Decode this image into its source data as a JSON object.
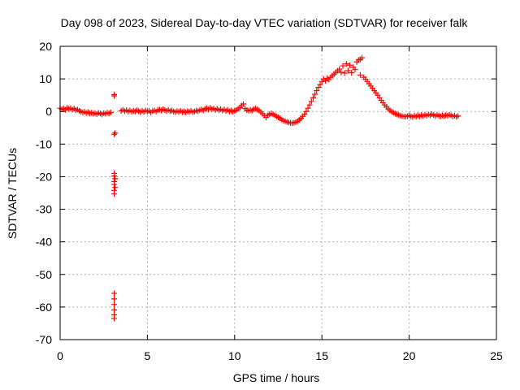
{
  "chart_data": {
    "type": "scatter",
    "title": "Day 098 of 2023, Sidereal Day-to-day VTEC variation (SDTVAR) for receiver falk",
    "xlabel": "GPS time / hours",
    "ylabel": "SDTVAR / TECUs",
    "xlim": [
      0,
      25
    ],
    "ylim": [
      -70,
      20
    ],
    "xticks": [
      0,
      5,
      10,
      15,
      20,
      25
    ],
    "yticks": [
      -70,
      -60,
      -50,
      -40,
      -30,
      -20,
      -10,
      0,
      10,
      20
    ],
    "xtick_labels": [
      "0",
      "5",
      "10",
      "15",
      "20",
      "25"
    ],
    "ytick_labels": [
      "-70",
      "-60",
      "-50",
      "-40",
      "-30",
      "-20",
      "-10",
      "0",
      "10",
      "20"
    ],
    "grid": true,
    "marker": "+",
    "color": "#ff0000",
    "series": [
      {
        "name": "SDTVAR",
        "points": [
          [
            0.0,
            1.0
          ],
          [
            0.1,
            0.7
          ],
          [
            0.2,
            0.9
          ],
          [
            0.3,
            0.5
          ],
          [
            0.4,
            1.1
          ],
          [
            0.5,
            0.8
          ],
          [
            0.6,
            1.0
          ],
          [
            0.7,
            0.6
          ],
          [
            0.8,
            0.9
          ],
          [
            0.9,
            0.4
          ],
          [
            1.0,
            0.6
          ],
          [
            1.1,
            0.2
          ],
          [
            1.2,
            -0.1
          ],
          [
            1.3,
            -0.3
          ],
          [
            1.4,
            -0.1
          ],
          [
            1.5,
            -0.5
          ],
          [
            1.6,
            -0.2
          ],
          [
            1.7,
            -0.6
          ],
          [
            1.8,
            -0.4
          ],
          [
            1.9,
            -0.7
          ],
          [
            2.0,
            -0.5
          ],
          [
            2.1,
            -0.8
          ],
          [
            2.2,
            -0.4
          ],
          [
            2.3,
            -0.6
          ],
          [
            2.4,
            -0.9
          ],
          [
            2.5,
            -0.5
          ],
          [
            2.6,
            -0.7
          ],
          [
            2.7,
            -0.4
          ],
          [
            2.8,
            -0.6
          ],
          [
            2.9,
            -0.3
          ],
          [
            3.1,
            5.2
          ],
          [
            3.1,
            4.8
          ],
          [
            3.1,
            -7.0
          ],
          [
            3.15,
            -6.6
          ],
          [
            3.1,
            -19.0
          ],
          [
            3.1,
            -19.8
          ],
          [
            3.15,
            -20.6
          ],
          [
            3.1,
            -21.5
          ],
          [
            3.1,
            -22.4
          ],
          [
            3.15,
            -23.3
          ],
          [
            3.1,
            -24.2
          ],
          [
            3.1,
            -25.3
          ],
          [
            3.1,
            -55.8
          ],
          [
            3.1,
            -57.5
          ],
          [
            3.1,
            -59.2
          ],
          [
            3.1,
            -60.9
          ],
          [
            3.1,
            -62.4
          ],
          [
            3.1,
            -63.5
          ],
          [
            3.5,
            0.2
          ],
          [
            3.6,
            0.5
          ],
          [
            3.7,
            0.1
          ],
          [
            3.8,
            0.4
          ],
          [
            3.9,
            0.0
          ],
          [
            4.0,
            0.3
          ],
          [
            4.1,
            -0.1
          ],
          [
            4.2,
            0.2
          ],
          [
            4.3,
            0.0
          ],
          [
            4.4,
            0.4
          ],
          [
            4.5,
            0.1
          ],
          [
            4.6,
            -0.2
          ],
          [
            4.7,
            0.2
          ],
          [
            4.8,
            -0.1
          ],
          [
            4.9,
            0.3
          ],
          [
            5.0,
            0.0
          ],
          [
            5.1,
            0.2
          ],
          [
            5.2,
            -0.3
          ],
          [
            5.3,
            0.1
          ],
          [
            5.4,
            0.3
          ],
          [
            5.5,
            0.0
          ],
          [
            5.6,
            0.4
          ],
          [
            5.7,
            0.6
          ],
          [
            5.8,
            0.3
          ],
          [
            5.9,
            0.7
          ],
          [
            6.0,
            0.4
          ],
          [
            6.1,
            0.2
          ],
          [
            6.2,
            0.5
          ],
          [
            6.3,
            0.1
          ],
          [
            6.4,
            0.3
          ],
          [
            6.5,
            0.0
          ],
          [
            6.6,
            -0.2
          ],
          [
            6.7,
            0.1
          ],
          [
            6.8,
            -0.1
          ],
          [
            6.9,
            0.2
          ],
          [
            7.0,
            -0.2
          ],
          [
            7.1,
            0.0
          ],
          [
            7.2,
            -0.3
          ],
          [
            7.3,
            0.1
          ],
          [
            7.4,
            -0.1
          ],
          [
            7.5,
            0.2
          ],
          [
            7.6,
            -0.2
          ],
          [
            7.7,
            0.0
          ],
          [
            7.8,
            0.3
          ],
          [
            7.9,
            0.1
          ],
          [
            8.0,
            0.4
          ],
          [
            8.1,
            0.6
          ],
          [
            8.2,
            0.3
          ],
          [
            8.3,
            0.8
          ],
          [
            8.4,
            1.0
          ],
          [
            8.5,
            0.6
          ],
          [
            8.6,
            1.1
          ],
          [
            8.7,
            0.7
          ],
          [
            8.8,
            0.9
          ],
          [
            8.9,
            0.5
          ],
          [
            9.0,
            0.8
          ],
          [
            9.1,
            0.4
          ],
          [
            9.2,
            0.7
          ],
          [
            9.3,
            0.3
          ],
          [
            9.4,
            0.6
          ],
          [
            9.5,
            0.2
          ],
          [
            9.6,
            0.5
          ],
          [
            9.7,
            0.0
          ],
          [
            9.8,
            0.3
          ],
          [
            9.9,
            -0.1
          ],
          [
            10.0,
            0.2
          ],
          [
            10.1,
            0.4
          ],
          [
            10.2,
            0.8
          ],
          [
            10.3,
            1.2
          ],
          [
            10.4,
            1.8
          ],
          [
            10.5,
            2.3
          ],
          [
            10.6,
            0.9
          ],
          [
            10.7,
            0.4
          ],
          [
            10.8,
            0.2
          ],
          [
            10.9,
            0.5
          ],
          [
            11.0,
            0.3
          ],
          [
            11.1,
            0.7
          ],
          [
            11.2,
            1.0
          ],
          [
            11.3,
            0.6
          ],
          [
            11.4,
            0.3
          ],
          [
            11.5,
            -0.2
          ],
          [
            11.6,
            -0.7
          ],
          [
            11.7,
            -1.3
          ],
          [
            11.8,
            -1.8
          ],
          [
            11.9,
            -1.2
          ],
          [
            12.0,
            -0.8
          ],
          [
            12.1,
            -0.6
          ],
          [
            12.2,
            -0.9
          ],
          [
            12.3,
            -1.2
          ],
          [
            12.4,
            -1.5
          ],
          [
            12.5,
            -1.8
          ],
          [
            12.6,
            -2.1
          ],
          [
            12.7,
            -2.5
          ],
          [
            12.8,
            -2.8
          ],
          [
            12.9,
            -3.0
          ],
          [
            13.0,
            -3.2
          ],
          [
            13.1,
            -3.4
          ],
          [
            13.2,
            -3.5
          ],
          [
            13.3,
            -3.6
          ],
          [
            13.4,
            -3.5
          ],
          [
            13.5,
            -3.3
          ],
          [
            13.6,
            -3.0
          ],
          [
            13.7,
            -2.6
          ],
          [
            13.8,
            -2.1
          ],
          [
            13.9,
            -1.5
          ],
          [
            14.0,
            -0.8
          ],
          [
            14.1,
            0.0
          ],
          [
            14.2,
            1.0
          ],
          [
            14.3,
            2.0
          ],
          [
            14.4,
            3.1
          ],
          [
            14.5,
            4.2
          ],
          [
            14.6,
            5.3
          ],
          [
            14.7,
            6.4
          ],
          [
            14.8,
            7.4
          ],
          [
            14.9,
            8.3
          ],
          [
            15.0,
            9.2
          ],
          [
            15.1,
            10.0
          ],
          [
            15.2,
            9.4
          ],
          [
            15.3,
            10.2
          ],
          [
            15.4,
            9.8
          ],
          [
            15.5,
            10.5
          ],
          [
            15.6,
            11.0
          ],
          [
            15.7,
            11.5
          ],
          [
            15.8,
            12.0
          ],
          [
            15.9,
            12.5
          ],
          [
            16.0,
            13.0
          ],
          [
            16.1,
            12.0
          ],
          [
            16.2,
            14.0
          ],
          [
            16.3,
            11.8
          ],
          [
            16.4,
            14.6
          ],
          [
            16.5,
            12.5
          ],
          [
            16.6,
            14.2
          ],
          [
            16.7,
            11.9
          ],
          [
            16.8,
            13.6
          ],
          [
            16.9,
            12.9
          ],
          [
            17.0,
            15.2
          ],
          [
            17.1,
            15.8
          ],
          [
            17.2,
            16.0
          ],
          [
            17.3,
            16.5
          ],
          [
            17.2,
            11.2
          ],
          [
            17.4,
            10.5
          ],
          [
            17.5,
            9.9
          ],
          [
            17.6,
            9.2
          ],
          [
            17.7,
            8.5
          ],
          [
            17.8,
            7.8
          ],
          [
            17.9,
            7.1
          ],
          [
            18.0,
            6.4
          ],
          [
            18.1,
            5.7
          ],
          [
            18.2,
            5.0
          ],
          [
            18.3,
            4.2
          ],
          [
            18.4,
            3.4
          ],
          [
            18.5,
            2.7
          ],
          [
            18.6,
            2.0
          ],
          [
            18.7,
            1.4
          ],
          [
            18.8,
            0.8
          ],
          [
            18.9,
            0.3
          ],
          [
            19.0,
            -0.1
          ],
          [
            19.1,
            -0.4
          ],
          [
            19.2,
            -0.7
          ],
          [
            19.3,
            -0.9
          ],
          [
            19.4,
            -1.1
          ],
          [
            19.5,
            -1.3
          ],
          [
            19.6,
            -1.4
          ],
          [
            19.7,
            -1.5
          ],
          [
            19.8,
            -1.6
          ],
          [
            19.9,
            -1.4
          ],
          [
            20.0,
            -1.2
          ],
          [
            20.1,
            -1.5
          ],
          [
            20.2,
            -1.7
          ],
          [
            20.3,
            -1.3
          ],
          [
            20.4,
            -1.6
          ],
          [
            20.5,
            -1.2
          ],
          [
            20.6,
            -1.5
          ],
          [
            20.7,
            -1.1
          ],
          [
            20.8,
            -1.4
          ],
          [
            20.9,
            -1.0
          ],
          [
            21.0,
            -1.3
          ],
          [
            21.1,
            -0.9
          ],
          [
            21.2,
            -1.2
          ],
          [
            21.3,
            -0.8
          ],
          [
            21.4,
            -1.1
          ],
          [
            21.5,
            -1.4
          ],
          [
            21.6,
            -1.0
          ],
          [
            21.7,
            -1.3
          ],
          [
            21.8,
            -1.5
          ],
          [
            21.9,
            -1.2
          ],
          [
            22.0,
            -1.4
          ],
          [
            22.1,
            -1.1
          ],
          [
            22.2,
            -1.3
          ],
          [
            22.3,
            -1.0
          ],
          [
            22.4,
            -1.2
          ],
          [
            22.5,
            -1.5
          ],
          [
            22.6,
            -1.3
          ],
          [
            22.7,
            -1.6
          ],
          [
            22.8,
            -1.4
          ]
        ]
      }
    ]
  }
}
